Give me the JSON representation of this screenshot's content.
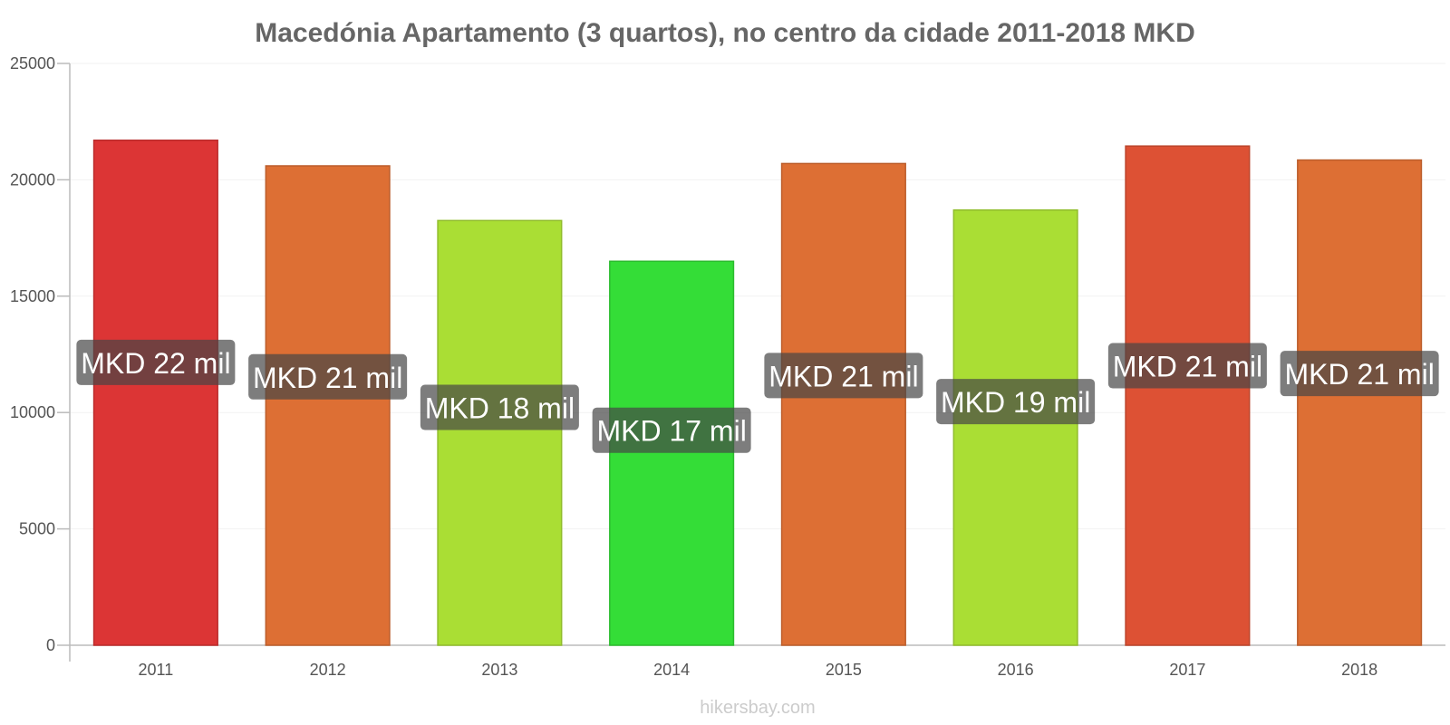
{
  "chart_data": {
    "type": "bar",
    "title": "Macedónia Apartamento (3 quartos), no centro da cidade 2011-2018 MKD",
    "categories": [
      "2011",
      "2012",
      "2013",
      "2014",
      "2015",
      "2016",
      "2017",
      "2018"
    ],
    "values": [
      21700,
      20600,
      18250,
      16500,
      20700,
      18700,
      21450,
      20850
    ],
    "data_labels": [
      "MKD 22 mil",
      "MKD 21 mil",
      "MKD 18 mil",
      "MKD 17 mil",
      "MKD 21 mil",
      "MKD 19 mil",
      "MKD 21 mil",
      "MKD 21 mil"
    ],
    "bar_colors": [
      "#dc3535",
      "#dd6f34",
      "#aade34",
      "#34dd37",
      "#dd6f34",
      "#aade34",
      "#dd5134",
      "#dd6f34"
    ],
    "ylim": [
      0,
      25000
    ],
    "yticks": [
      "0",
      "5000",
      "10000",
      "15000",
      "20000",
      "25000"
    ],
    "xlabel": "",
    "ylabel": "",
    "grid": true,
    "legend": "none"
  },
  "source": "hikersbay.com"
}
